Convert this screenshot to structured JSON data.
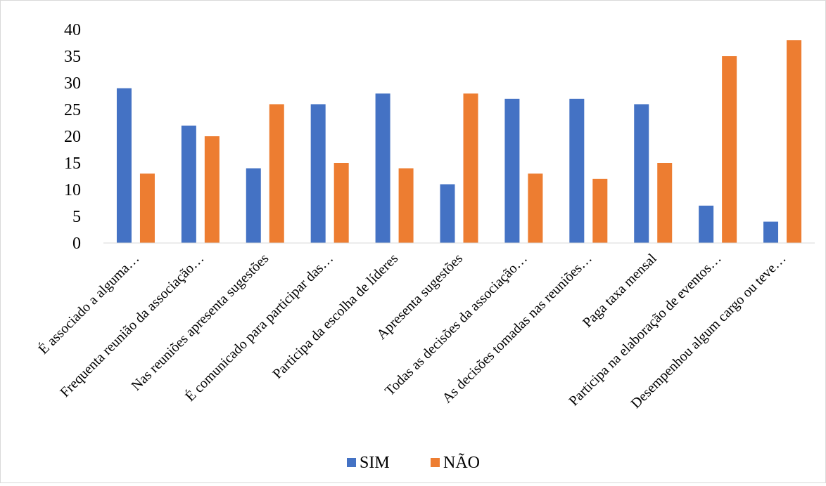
{
  "chart_data": {
    "type": "bar",
    "title": "",
    "xlabel": "",
    "ylabel": "",
    "ylim": [
      0,
      40
    ],
    "yticks": [
      0,
      5,
      10,
      15,
      20,
      25,
      30,
      35,
      40
    ],
    "grid": false,
    "legend_position": "bottom",
    "categories": [
      "É associado a alguma…",
      "Frequenta reunião da associação…",
      "Nas reuniões apresenta sugestões",
      "É comunicado para participar das…",
      "Participa da escolha de líderes",
      "Apresenta sugestões",
      "Todas as decisões da associação…",
      "As decisões tomadas nas reuniões…",
      "Paga taxa mensal",
      "Participa na elaboração de eventos…",
      "Desempenhou algum cargo ou teve…"
    ],
    "series": [
      {
        "name": "SIM",
        "color": "#4472c4",
        "values": [
          29,
          22,
          14,
          26,
          28,
          11,
          27,
          27,
          26,
          7,
          4
        ]
      },
      {
        "name": "NÃO",
        "color": "#ed7d31",
        "values": [
          13,
          20,
          26,
          15,
          14,
          28,
          13,
          12,
          15,
          35,
          38
        ]
      }
    ]
  }
}
